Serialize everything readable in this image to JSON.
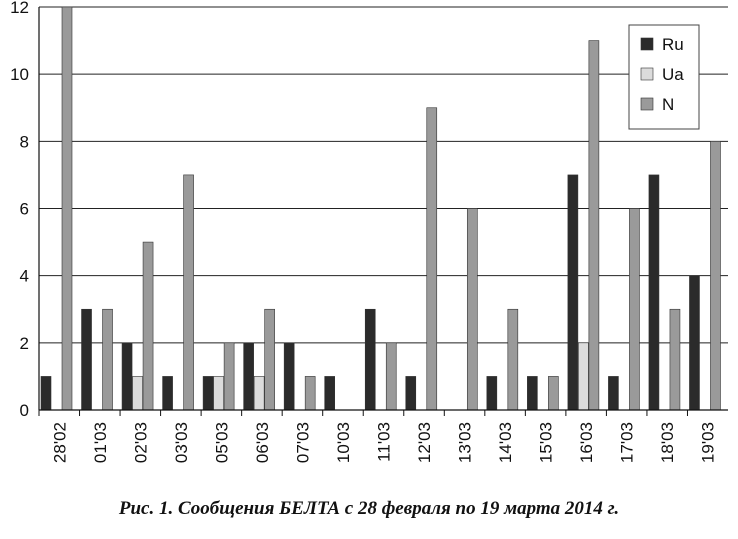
{
  "caption": "Рис. 1. Сообщения БЕЛТА с 28 февраля по 19 марта 2014 г.",
  "chart_data": {
    "type": "bar",
    "title": "",
    "xlabel": "",
    "ylabel": "",
    "ylim": [
      0,
      12
    ],
    "yticks": [
      "0",
      "2",
      "4",
      "6",
      "8",
      "10",
      "12"
    ],
    "grid": true,
    "legend_position": "top-right",
    "categories": [
      "28'02",
      "01'03",
      "02'03",
      "03'03",
      "05'03",
      "06'03",
      "07'03",
      "10'03",
      "11'03",
      "12'03",
      "13'03",
      "14'03",
      "15'03",
      "16'03",
      "17'03",
      "18'03",
      "19'03"
    ],
    "series": [
      {
        "name": "Ru",
        "color": "#2b2b2b",
        "values": [
          1,
          3,
          2,
          1,
          1,
          2,
          2,
          1,
          3,
          1,
          0,
          1,
          1,
          7,
          1,
          7,
          4
        ]
      },
      {
        "name": "Ua",
        "color": "#dcdcdc",
        "values": [
          0,
          0,
          1,
          0,
          1,
          1,
          0,
          0,
          0,
          0,
          0,
          0,
          0,
          2,
          0,
          0,
          0
        ]
      },
      {
        "name": "N",
        "color": "#9a9a9a",
        "values": [
          12,
          3,
          5,
          7,
          2,
          3,
          1,
          0,
          2,
          9,
          6,
          3,
          1,
          11,
          6,
          3,
          8
        ]
      }
    ]
  }
}
